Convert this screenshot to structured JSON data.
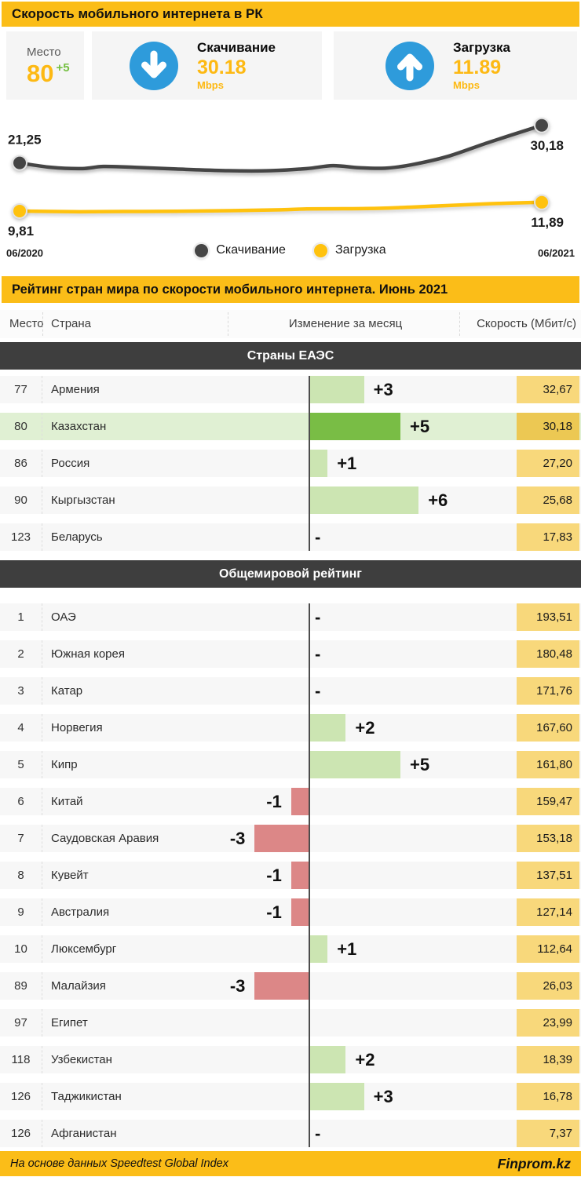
{
  "header": {
    "title": "Скорость мобильного интернета в РК"
  },
  "stats": {
    "place": {
      "label": "Место",
      "value": "80",
      "delta": "+5"
    },
    "download": {
      "label": "Скачивание",
      "value": "30.18",
      "unit": "Mbps"
    },
    "upload": {
      "label": "Загрузка",
      "value": "11.89",
      "unit": "Mbps"
    }
  },
  "chart_data": {
    "type": "line",
    "x_labels": [
      "06/2020",
      "06/2021"
    ],
    "ylim": [
      7,
      32
    ],
    "grid": false,
    "legend_position": "bottom-center",
    "series": [
      {
        "name": "Скачивание",
        "color": "#454545",
        "start_label": "21,25",
        "end_label": "30,18",
        "label_pos": {
          "start": "above",
          "end": "below"
        },
        "x": [
          0,
          0.06,
          0.12,
          0.16,
          0.22,
          0.3,
          0.4,
          0.48,
          0.55,
          0.6,
          0.65,
          0.7,
          0.75,
          0.82,
          0.9,
          1
        ],
        "values": [
          21.25,
          20.2,
          19.9,
          20.4,
          20.2,
          19.8,
          19.4,
          19.4,
          19.9,
          20.6,
          20.1,
          20.0,
          20.8,
          22.8,
          26.2,
          30.18
        ]
      },
      {
        "name": "Загрузка",
        "color": "#FFC20E",
        "start_label": "9,81",
        "end_label": "11,89",
        "label_pos": {
          "start": "below",
          "end": "below"
        },
        "x": [
          0,
          0.1,
          0.2,
          0.3,
          0.4,
          0.5,
          0.55,
          0.62,
          0.7,
          0.8,
          0.9,
          1
        ],
        "values": [
          9.81,
          9.65,
          9.7,
          9.75,
          9.9,
          10.1,
          10.3,
          10.35,
          10.5,
          11.0,
          11.55,
          11.89
        ]
      }
    ]
  },
  "ranking": {
    "title": "Рейтинг стран мира по скорости мобильного интернета. Июнь 2021",
    "columns": {
      "place": "Место",
      "country": "Страна",
      "change": "Изменение за месяц",
      "speed": "Скорость (Мбит/с)"
    },
    "sections": [
      {
        "title": "Страны ЕАЭС",
        "rows": [
          {
            "place": "77",
            "country": "Армения",
            "change": 3,
            "change_label": "+3",
            "speed": "32,67"
          },
          {
            "place": "80",
            "country": "Казахстан",
            "change": 5,
            "change_label": "+5",
            "speed": "30,18",
            "highlight": true
          },
          {
            "place": "86",
            "country": "Россия",
            "change": 1,
            "change_label": "+1",
            "speed": "27,20"
          },
          {
            "place": "90",
            "country": "Кыргызстан",
            "change": 6,
            "change_label": "+6",
            "speed": "25,68"
          },
          {
            "place": "123",
            "country": "Беларусь",
            "change": 0,
            "change_label": "-",
            "speed": "17,83"
          }
        ]
      },
      {
        "title": "Общемировой рейтинг",
        "rows": [
          {
            "place": "1",
            "country": "ОАЭ",
            "change": 0,
            "change_label": "-",
            "speed": "193,51"
          },
          {
            "place": "2",
            "country": "Южная корея",
            "change": 0,
            "change_label": "-",
            "speed": "180,48"
          },
          {
            "place": "3",
            "country": "Катар",
            "change": 0,
            "change_label": "-",
            "speed": "171,76"
          },
          {
            "place": "4",
            "country": "Норвегия",
            "change": 2,
            "change_label": "+2",
            "speed": "167,60"
          },
          {
            "place": "5",
            "country": "Кипр",
            "change": 5,
            "change_label": "+5",
            "speed": "161,80"
          },
          {
            "place": "6",
            "country": "Китай",
            "change": -1,
            "change_label": "-1",
            "speed": "159,47"
          },
          {
            "place": "7",
            "country": "Саудовская Аравия",
            "change": -3,
            "change_label": "-3",
            "speed": "153,18"
          },
          {
            "place": "8",
            "country": "Кувейт",
            "change": -1,
            "change_label": "-1",
            "speed": "137,51"
          },
          {
            "place": "9",
            "country": "Австралия",
            "change": -1,
            "change_label": "-1",
            "speed": "127,14"
          },
          {
            "place": "10",
            "country": "Люксембург",
            "change": 1,
            "change_label": "+1",
            "speed": "112,64"
          },
          {
            "place": "89",
            "country": "Малайзия",
            "change": -3,
            "change_label": "-3",
            "speed": "26,03"
          },
          {
            "place": "97",
            "country": "Египет",
            "change": 0,
            "change_label": "",
            "speed": "23,99"
          },
          {
            "place": "118",
            "country": "Узбекистан",
            "change": 2,
            "change_label": "+2",
            "speed": "18,39"
          },
          {
            "place": "126",
            "country": "Таджикистан",
            "change": 3,
            "change_label": "+3",
            "speed": "16,78"
          },
          {
            "place": "126",
            "country": "Афганистан",
            "change": 0,
            "change_label": "-",
            "speed": "7,37"
          }
        ]
      }
    ]
  },
  "footer": {
    "source": "На основе данных Speedtest Global Index",
    "brand": "Finprom.kz"
  },
  "colors": {
    "yellow": "#FBBD18",
    "gold": "#FDB913",
    "green_delta": "#76C043",
    "blue": "#2E9BDB",
    "bar_green": "#CCE5B2",
    "bar_green_strong": "#79BD45",
    "bar_red": "#DC8787",
    "row_bg": "#F7F7F7",
    "row_highlight": "#E0F0D3",
    "speed_bg": "#F8D87B",
    "speed_strong": "#ECC853",
    "dark_bar": "#3E3E3E"
  }
}
